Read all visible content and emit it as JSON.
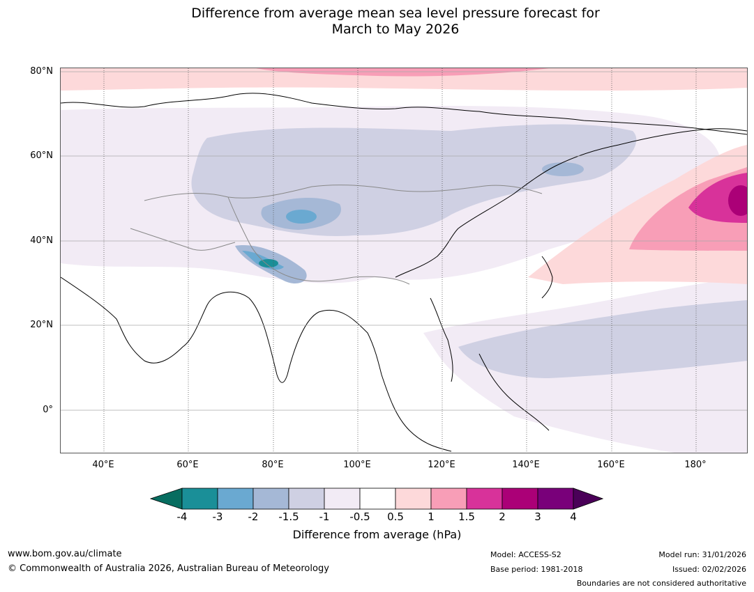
{
  "title": {
    "line1": "Difference from average mean sea level pressure forecast for",
    "line2": "March to May 2026"
  },
  "map": {
    "lat_labels": [
      "80°N",
      "60°N",
      "40°N",
      "20°N",
      "0°"
    ],
    "lon_labels": [
      "40°E",
      "60°E",
      "80°E",
      "100°E",
      "120°E",
      "140°E",
      "160°E",
      "180°"
    ]
  },
  "legend": {
    "ticks": [
      "-4",
      "-3",
      "-2",
      "-1.5",
      "-1",
      "-0.5",
      "0.5",
      "1",
      "1.5",
      "2",
      "3",
      "4"
    ],
    "colors": [
      "#1a8f98",
      "#6aa9d1",
      "#a5b8d6",
      "#cfd0e3",
      "#f2ebf5",
      "#ffffff",
      "#fdd9da",
      "#f89eb7",
      "#d8329a",
      "#ab0077",
      "#79007a"
    ],
    "low_extend_color": "#076d60",
    "high_extend_color": "#4a0058",
    "label": "Difference from average (hPa)"
  },
  "footer": {
    "website": "www.bom.gov.au/climate",
    "copyright": "© Commonwealth of Australia 2026, Australian Bureau of Meteorology",
    "model": "Model: ACCESS-S2",
    "base_period": "Base period: 1981-2018",
    "model_run": "Model run: 31/01/2026",
    "issued": "Issued: 02/02/2026",
    "disclaimer": "Boundaries are not considered authoritative"
  }
}
